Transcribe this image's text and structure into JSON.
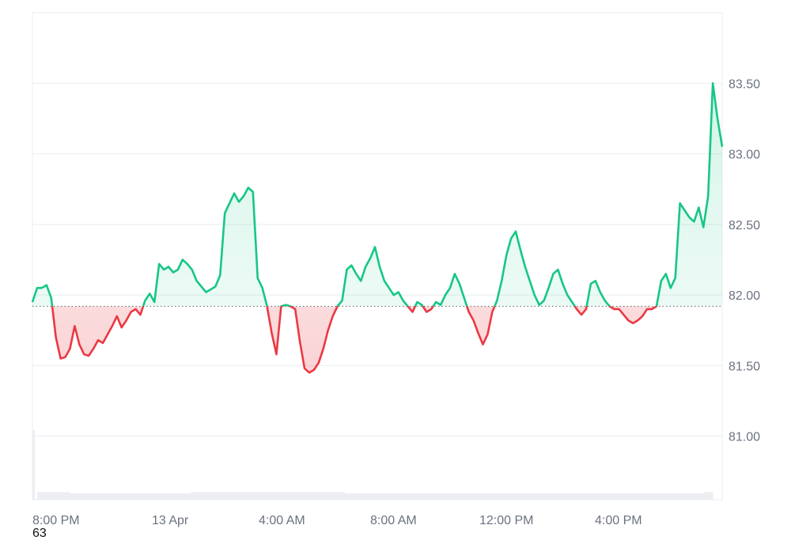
{
  "colors": {
    "up_line": "#16c784",
    "down_line": "#ea3943",
    "up_fill": "#16c784",
    "down_fill": "#ea3943",
    "grid": "#e9ecf1",
    "axis_text": "#6b7280",
    "baseline": "#5f6368",
    "volume": "#eceef2"
  },
  "bottom_stub_text": "63",
  "chart_data": {
    "type": "area",
    "title": "",
    "xlabel": "",
    "ylabel": "",
    "baseline_value": 81.92,
    "ylim": [
      80.55,
      84.0
    ],
    "y_ticks": [
      {
        "value": 83.5,
        "label": "83.50"
      },
      {
        "value": 83.0,
        "label": "83.00"
      },
      {
        "value": 82.5,
        "label": "82.50"
      },
      {
        "value": 82.0,
        "label": "82.00"
      },
      {
        "value": 81.5,
        "label": "81.50"
      },
      {
        "value": 81.0,
        "label": "81.00"
      }
    ],
    "x_ticks": [
      "8:00 PM",
      "13 Apr",
      "4:00 AM",
      "8:00 AM",
      "12:00 PM",
      "4:00 PM"
    ],
    "grid": true,
    "series": [
      {
        "values": [
          81.95,
          82.05,
          82.05,
          82.07,
          81.98,
          81.7,
          81.55,
          81.56,
          81.62,
          81.78,
          81.65,
          81.58,
          81.57,
          81.62,
          81.68,
          81.66,
          81.72,
          81.78,
          81.85,
          81.77,
          81.82,
          81.88,
          81.9,
          81.86,
          81.96,
          82.01,
          81.95,
          82.22,
          82.18,
          82.2,
          82.16,
          82.18,
          82.25,
          82.22,
          82.18,
          82.1,
          82.06,
          82.02,
          82.04,
          82.06,
          82.14,
          82.58,
          82.65,
          82.72,
          82.66,
          82.7,
          82.76,
          82.73,
          82.12,
          82.05,
          81.92,
          81.73,
          81.58,
          81.92,
          81.93,
          81.92,
          81.9,
          81.67,
          81.48,
          81.45,
          81.47,
          81.52,
          81.62,
          81.75,
          81.85,
          81.92,
          81.96,
          82.18,
          82.21,
          82.15,
          82.1,
          82.2,
          82.26,
          82.34,
          82.2,
          82.1,
          82.05,
          82.0,
          82.02,
          81.96,
          81.92,
          81.88,
          81.95,
          81.93,
          81.88,
          81.9,
          81.95,
          81.93,
          82.0,
          82.05,
          82.15,
          82.08,
          81.98,
          81.88,
          81.82,
          81.73,
          81.65,
          81.72,
          81.88,
          81.96,
          82.1,
          82.28,
          82.4,
          82.45,
          82.32,
          82.2,
          82.1,
          82.0,
          81.93,
          81.96,
          82.05,
          82.15,
          82.18,
          82.08,
          82.0,
          81.95,
          81.9,
          81.86,
          81.9,
          82.08,
          82.1,
          82.02,
          81.96,
          81.92,
          81.9,
          81.9,
          81.86,
          81.82,
          81.8,
          81.82,
          81.85,
          81.9,
          81.9,
          81.92,
          82.1,
          82.15,
          82.05,
          82.12,
          82.65,
          82.6,
          82.55,
          82.52,
          82.62,
          82.48,
          82.7,
          83.5,
          83.25,
          83.05
        ]
      }
    ],
    "volume": [
      0.55,
      0.06,
      0.06,
      0.06,
      0.06,
      0.06,
      0.06,
      0.06,
      0.05,
      0.05,
      0.05,
      0.05,
      0.05,
      0.05,
      0.05,
      0.05,
      0.05,
      0.05,
      0.05,
      0.05,
      0.05,
      0.05,
      0.05,
      0.05,
      0.05,
      0.05,
      0.05,
      0.05,
      0.05,
      0.05,
      0.05,
      0.05,
      0.05,
      0.05,
      0.06,
      0.06,
      0.06,
      0.06,
      0.06,
      0.06,
      0.06,
      0.06,
      0.06,
      0.06,
      0.06,
      0.06,
      0.06,
      0.06,
      0.06,
      0.06,
      0.06,
      0.06,
      0.06,
      0.06,
      0.06,
      0.06,
      0.06,
      0.06,
      0.06,
      0.06,
      0.06,
      0.06,
      0.06,
      0.06,
      0.06,
      0.06,
      0.06,
      0.05,
      0.05,
      0.05,
      0.05,
      0.05,
      0.05,
      0.05,
      0.05,
      0.05,
      0.05,
      0.05,
      0.05,
      0.05,
      0.05,
      0.05,
      0.05,
      0.05,
      0.05,
      0.05,
      0.05,
      0.05,
      0.05,
      0.05,
      0.05,
      0.05,
      0.05,
      0.05,
      0.05,
      0.05,
      0.05,
      0.05,
      0.05,
      0.05,
      0.05,
      0.05,
      0.05,
      0.05,
      0.05,
      0.05,
      0.05,
      0.05,
      0.05,
      0.05,
      0.05,
      0.05,
      0.05,
      0.05,
      0.05,
      0.05,
      0.05,
      0.05,
      0.05,
      0.05,
      0.05,
      0.05,
      0.05,
      0.05,
      0.05,
      0.05,
      0.05,
      0.05,
      0.05,
      0.05,
      0.05,
      0.05,
      0.05,
      0.05,
      0.05,
      0.05,
      0.05,
      0.05,
      0.05,
      0.05,
      0.05,
      0.05,
      0.05,
      0.05,
      0.06,
      0.06
    ]
  }
}
